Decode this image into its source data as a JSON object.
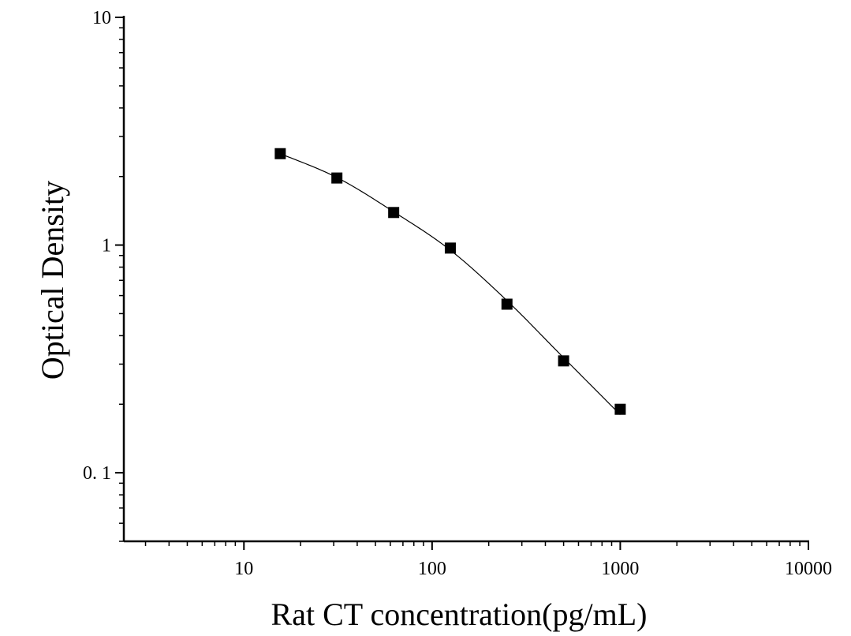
{
  "chart_data": {
    "type": "scatter",
    "title": "",
    "xlabel": "Rat CT concentration(pg/mL)",
    "ylabel": "Optical Density",
    "x_scale": "log",
    "y_scale": "log",
    "xlim": [
      2.3,
      10000
    ],
    "ylim": [
      0.05,
      10
    ],
    "x_ticks": [
      {
        "value": 10,
        "label": "10"
      },
      {
        "value": 100,
        "label": "100"
      },
      {
        "value": 1000,
        "label": "1000"
      },
      {
        "value": 10000,
        "label": "10000"
      }
    ],
    "y_ticks": [
      {
        "value": 0.1,
        "label": "0. 1"
      },
      {
        "value": 1,
        "label": "1"
      },
      {
        "value": 10,
        "label": "10"
      }
    ],
    "grid": false,
    "legend": "none",
    "marker_color": "#000000",
    "series": [
      {
        "x": [
          15.6,
          31.2,
          62.5,
          125,
          250,
          500,
          1000
        ],
        "y": [
          2.52,
          1.97,
          1.39,
          0.97,
          0.55,
          0.31,
          0.19
        ]
      }
    ],
    "fit_curve": {
      "x": [
        15.6,
        31.2,
        62.5,
        125,
        250,
        500,
        1000
      ],
      "y": [
        2.52,
        1.98,
        1.4,
        0.95,
        0.57,
        0.32,
        0.18
      ]
    }
  }
}
